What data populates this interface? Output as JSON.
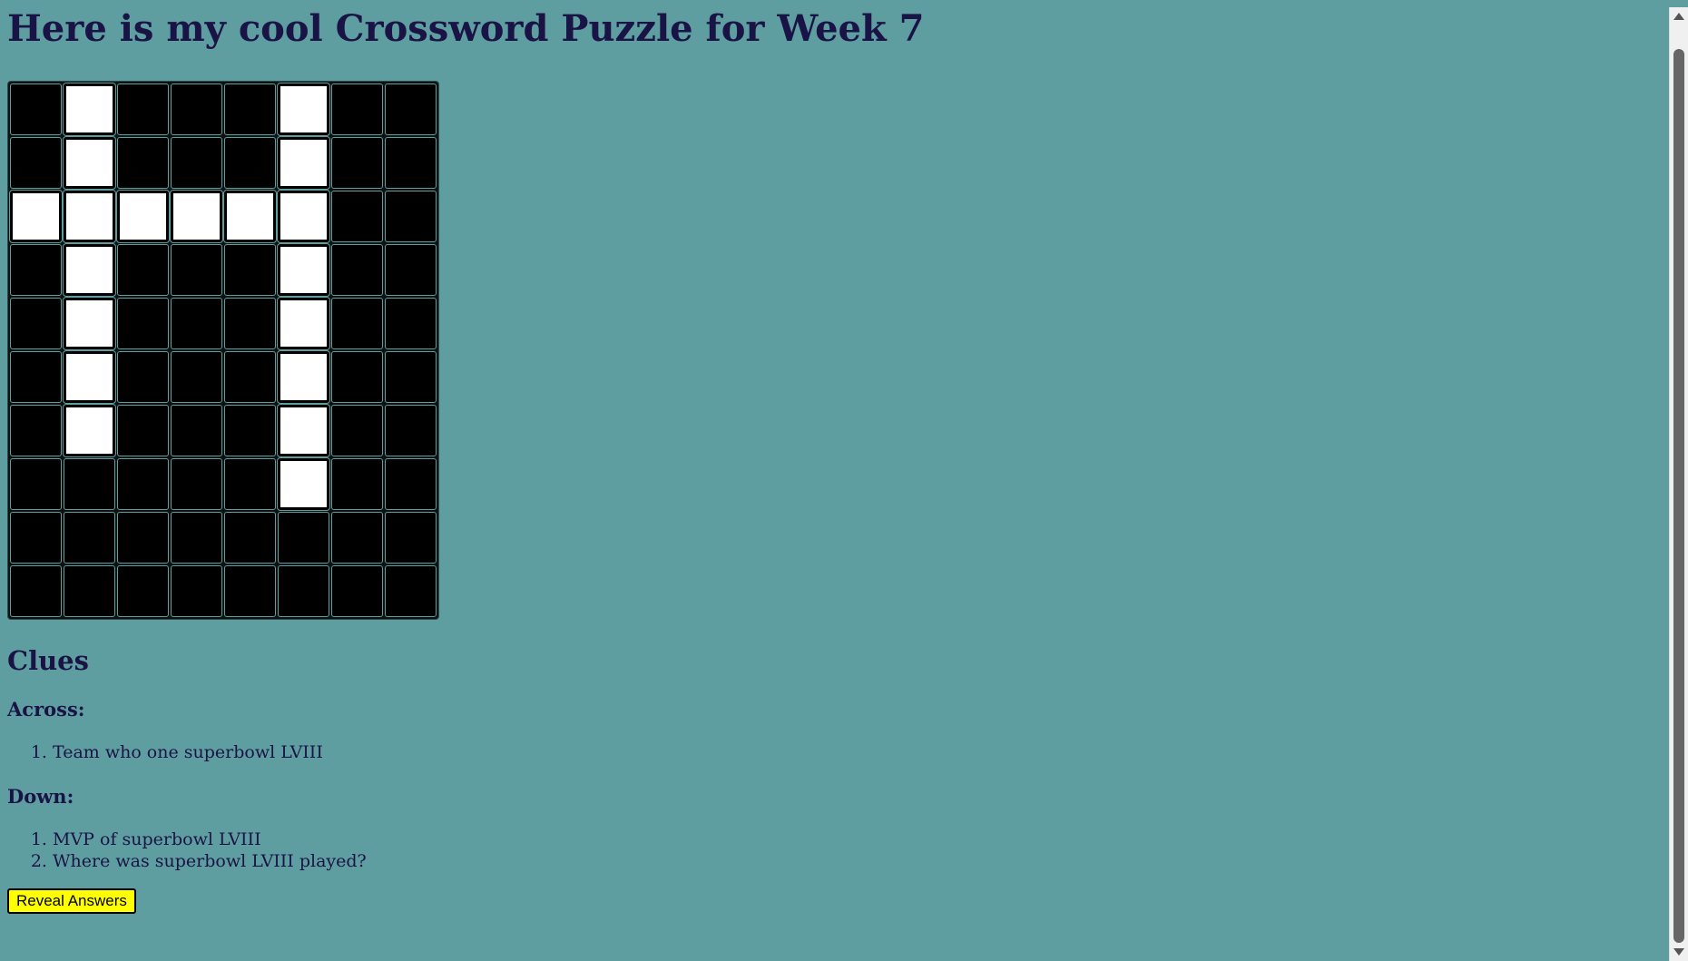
{
  "title": "Here is my cool Crossword Puzzle for Week 7",
  "grid": {
    "rows": 10,
    "cols": 8,
    "cells": [
      [
        0,
        1,
        0,
        0,
        0,
        1,
        0,
        0
      ],
      [
        0,
        1,
        0,
        0,
        0,
        1,
        0,
        0
      ],
      [
        1,
        1,
        1,
        1,
        1,
        1,
        0,
        0
      ],
      [
        0,
        1,
        0,
        0,
        0,
        1,
        0,
        0
      ],
      [
        0,
        1,
        0,
        0,
        0,
        1,
        0,
        0
      ],
      [
        0,
        1,
        0,
        0,
        0,
        1,
        0,
        0
      ],
      [
        0,
        1,
        0,
        0,
        0,
        1,
        0,
        0
      ],
      [
        0,
        0,
        0,
        0,
        0,
        1,
        0,
        0
      ],
      [
        0,
        0,
        0,
        0,
        0,
        0,
        0,
        0
      ],
      [
        0,
        0,
        0,
        0,
        0,
        0,
        0,
        0
      ]
    ]
  },
  "clues": {
    "heading": "Clues",
    "across_label": "Across:",
    "across": [
      "Team who one superbowl LVIII"
    ],
    "down_label": "Down:",
    "down": [
      "MVP of superbowl LVIII",
      "Where was superbowl LVIII played?"
    ]
  },
  "reveal_button": "Reveal Answers",
  "colors": {
    "background": "#5f9ea0",
    "text": "#1a1446",
    "button": "#ffff00"
  }
}
